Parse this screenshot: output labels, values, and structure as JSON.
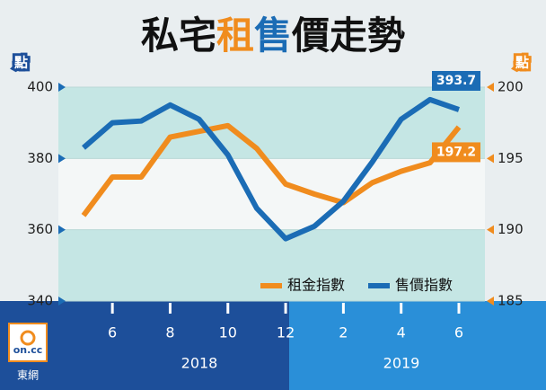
{
  "chart_data": {
    "type": "line",
    "title": "私宅租售價走勢",
    "y_unit": "點",
    "y2_unit": "點",
    "categories": [
      null,
      "6",
      null,
      "8",
      null,
      "10",
      null,
      "12",
      null,
      "2",
      null,
      "4",
      null,
      "6"
    ],
    "years": [
      "2018",
      "2019"
    ],
    "ylim": [
      340,
      400
    ],
    "yticks": [
      340,
      360,
      380,
      400
    ],
    "y2lim": [
      185,
      200
    ],
    "y2ticks": [
      185,
      190,
      195,
      200
    ],
    "series": [
      {
        "name": "租金指數",
        "color": "#f08c1e",
        "axis": "y2",
        "values": [
          191.0,
          193.7,
          193.7,
          196.5,
          196.9,
          197.3,
          195.7,
          193.2,
          192.5,
          191.9,
          193.3,
          194.1,
          194.7,
          197.2
        ]
      },
      {
        "name": "售價指數",
        "color": "#1b6cb5",
        "values": [
          383,
          390,
          390.5,
          395,
          391,
          381,
          366,
          357.5,
          361,
          368,
          379,
          391,
          396.5,
          393.7
        ]
      }
    ],
    "logo": {
      "text": "on.cc",
      "name": "東網"
    }
  }
}
